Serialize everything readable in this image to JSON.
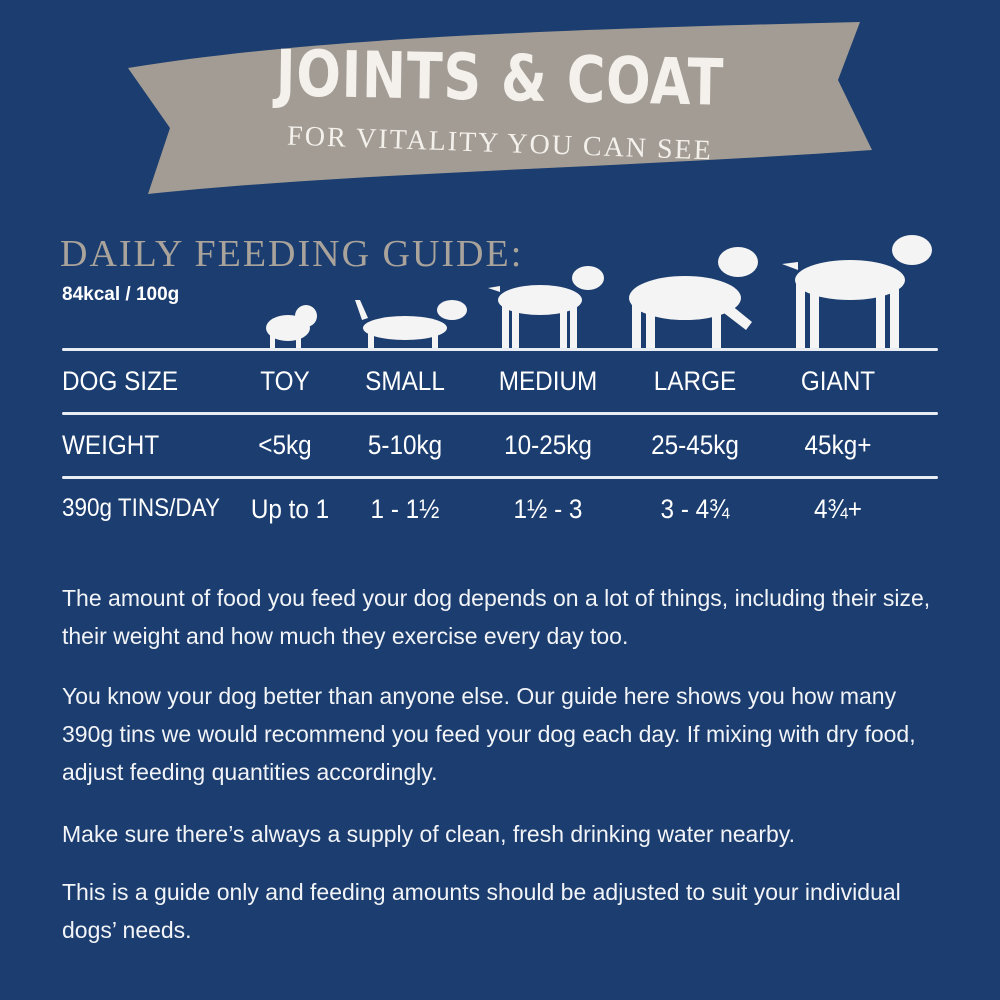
{
  "banner": {
    "title": "JOINTS & COAT",
    "subtitle": "FOR VITALITY YOU CAN SEE"
  },
  "guide": {
    "heading": "DAILY FEEDING GUIDE:",
    "kcal": "84kcal / 100g"
  },
  "table": {
    "rows": [
      {
        "label": "DOG SIZE",
        "values": [
          "TOY",
          "SMALL",
          "MEDIUM",
          "LARGE",
          "GIANT"
        ]
      },
      {
        "label": "WEIGHT",
        "values": [
          "<5kg",
          "5-10kg",
          "10-25kg",
          "25-45kg",
          "45kg+"
        ]
      },
      {
        "label": "390g TINS/DAY",
        "values": [
          "Up to 1",
          "1 - 1½",
          "1½ - 3",
          "3 - 4¾",
          "4¾+"
        ]
      }
    ]
  },
  "paragraphs": [
    "The amount of food you feed your dog depends on a lot of things, including their size, their weight and how much they exercise every day too.",
    "You know your dog better than anyone else. Our guide here shows you how many 390g tins we would recommend you feed your dog each day. If mixing with dry food, adjust feeding quantities accordingly.",
    "Make sure there’s always a supply of clean, fresh drinking water nearby.",
    "This is a guide only and feeding amounts should be adjusted to suit your individual dogs’ needs."
  ],
  "colors": {
    "background": "#1b3d6f",
    "banner": "#a29c94",
    "heading": "#a9a39b"
  },
  "icons": [
    "toy-dog-icon",
    "small-dog-icon",
    "medium-dog-icon",
    "large-dog-icon",
    "giant-dog-icon"
  ]
}
